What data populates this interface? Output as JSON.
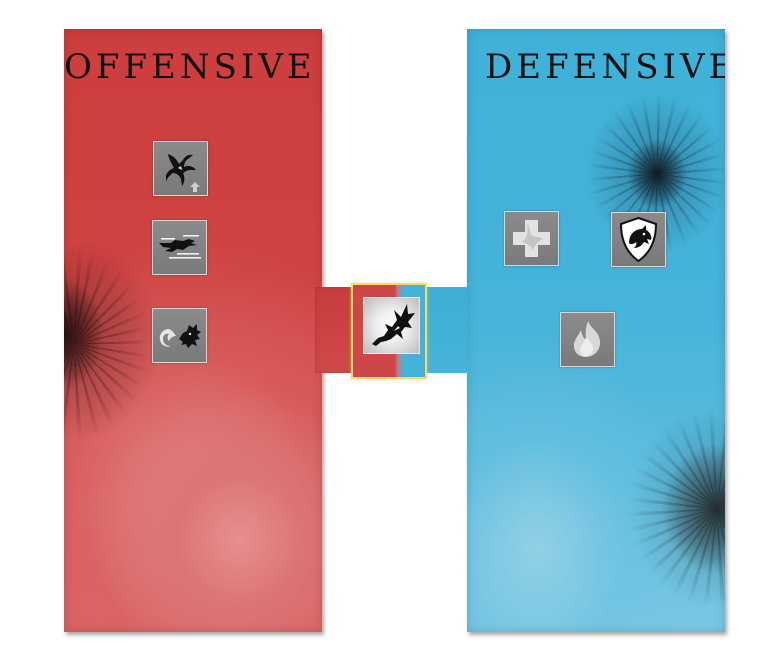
{
  "offensive": {
    "title": "OFFENSIVE",
    "color": "#cd3d3d",
    "skills": [
      {
        "icon": "claw-upgrade-icon"
      },
      {
        "icon": "dragon-dash-icon"
      },
      {
        "icon": "dragon-breath-icon"
      }
    ]
  },
  "defensive": {
    "title": "DEFENSIVE",
    "color": "#3fb1d8",
    "skills": [
      {
        "icon": "heal-cross-icon"
      },
      {
        "icon": "dragon-shield-icon"
      },
      {
        "icon": "fire-icon"
      }
    ]
  },
  "center": {
    "icon": "flying-dragon-icon",
    "highlight_color": "#f3dc6e"
  }
}
